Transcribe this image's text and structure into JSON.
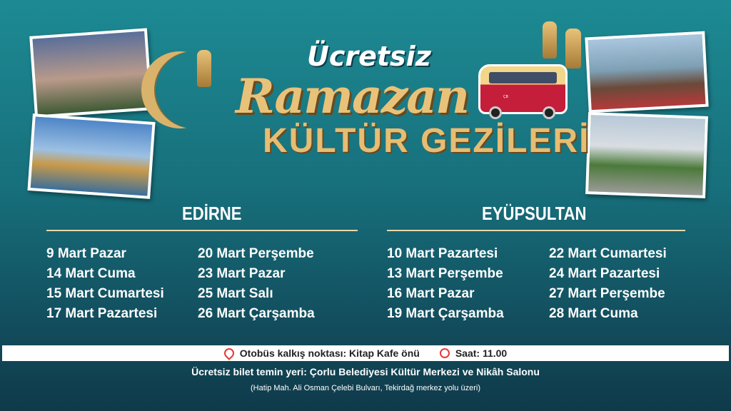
{
  "title": {
    "line1": "Ücretsiz",
    "line2": "Ramazan",
    "line3": "KÜLTÜR GEZİLERİ"
  },
  "van_logo": "ÇORLU BELEDİYESİ",
  "edirne": {
    "heading": "EDİRNE",
    "col1": [
      "9 Mart Pazar",
      "14 Mart Cuma",
      "15 Mart Cumartesi",
      "17 Mart Pazartesi"
    ],
    "col2": [
      "20 Mart Perşembe",
      "23 Mart Pazar",
      "25 Mart Salı",
      "26 Mart Çarşamba"
    ]
  },
  "eyupsultan": {
    "heading": "EYÜPSULTAN",
    "col1": [
      "10 Mart Pazartesi",
      "13 Mart Perşembe",
      "16 Mart Pazar",
      "19 Mart Çarşamba"
    ],
    "col2": [
      "22 Mart Cumartesi",
      "24 Mart Pazartesi",
      "27 Mart Perşembe",
      "28 Mart Cuma"
    ]
  },
  "footer": {
    "departure": "Otobüs kalkış noktası: Kitap Kafe önü",
    "time": "Saat: 11.00",
    "ticket": "Ücretsiz bilet temin yeri: Çorlu Belediyesi Kültür Merkezi ve Nikâh Salonu",
    "address": "(Hatip Mah. Ali Osman Çelebi Bulvarı, Tekirdağ merkez yolu üzeri)"
  },
  "colors": {
    "gold": "#e6bd73",
    "teal": "#1d8a93",
    "accent_red": "#e53935"
  }
}
